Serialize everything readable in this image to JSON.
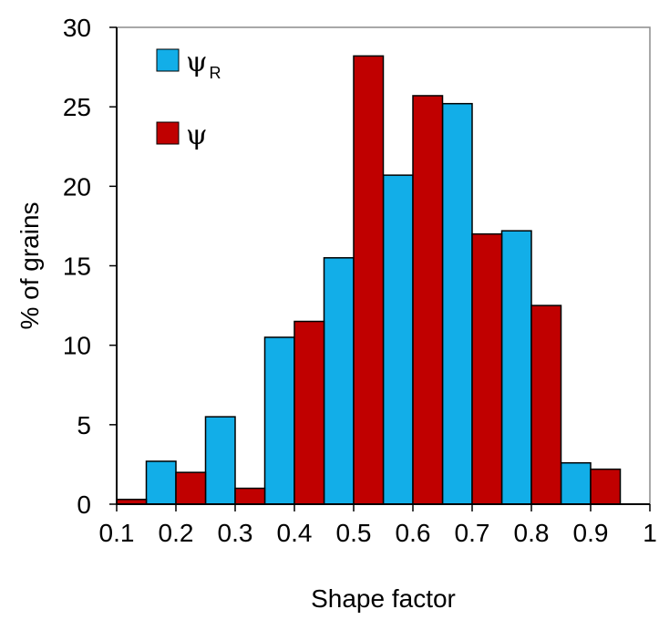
{
  "chart_data": {
    "type": "bar",
    "title": "",
    "xlabel": "Shape factor",
    "ylabel": "% of grains",
    "xlim": [
      0.1,
      1
    ],
    "ylim": [
      0,
      30
    ],
    "x_ticks": [
      "0.1",
      "0.2",
      "0.3",
      "0.4",
      "0.5",
      "0.6",
      "0.7",
      "0.8",
      "0.9",
      "1"
    ],
    "y_ticks": [
      "0",
      "5",
      "10",
      "15",
      "20",
      "25",
      "30"
    ],
    "grid": false,
    "legend_position": "top-left",
    "series": [
      {
        "name": "ψR",
        "name_main": "ψ",
        "name_sub": "R",
        "color": "#12aee8",
        "bins": [
          [
            0.15,
            0.2
          ],
          [
            0.25,
            0.3
          ],
          [
            0.35,
            0.4
          ],
          [
            0.45,
            0.5
          ],
          [
            0.55,
            0.6
          ],
          [
            0.65,
            0.7
          ],
          [
            0.75,
            0.8
          ],
          [
            0.85,
            0.9
          ]
        ],
        "values": [
          2.7,
          5.5,
          10.5,
          15.5,
          20.7,
          25.2,
          17.2,
          2.6
        ]
      },
      {
        "name": "ψ",
        "name_main": "ψ",
        "name_sub": "",
        "color": "#c00000",
        "bins": [
          [
            0.1,
            0.15
          ],
          [
            0.2,
            0.25
          ],
          [
            0.3,
            0.35
          ],
          [
            0.4,
            0.45
          ],
          [
            0.5,
            0.55
          ],
          [
            0.6,
            0.65
          ],
          [
            0.7,
            0.75
          ],
          [
            0.8,
            0.85
          ],
          [
            0.9,
            0.95
          ]
        ],
        "values": [
          0.3,
          2.0,
          1.0,
          11.5,
          28.2,
          25.7,
          17.0,
          12.5,
          2.2
        ]
      }
    ]
  }
}
